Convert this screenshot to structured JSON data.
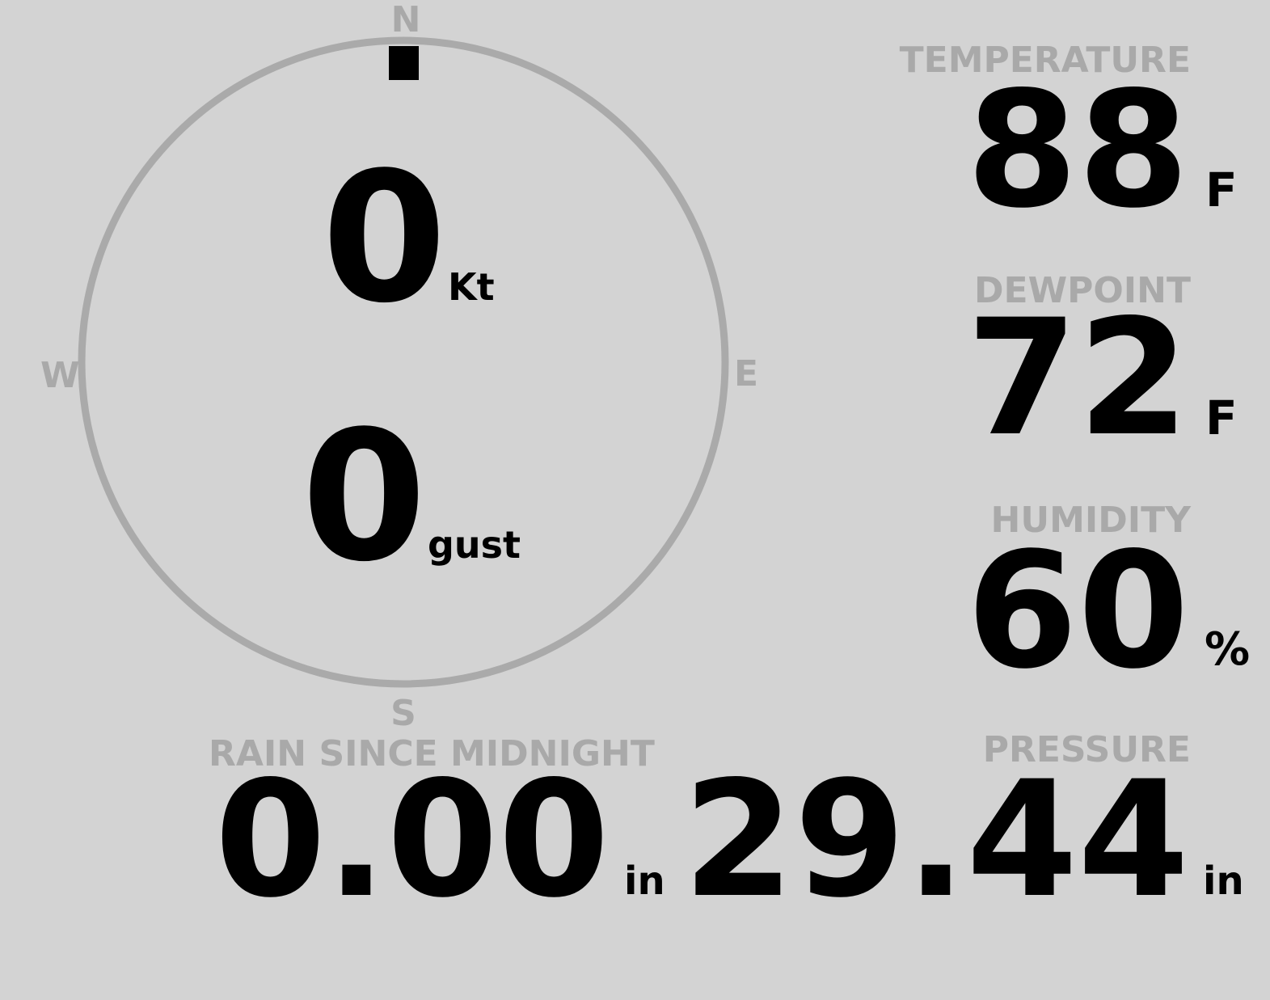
{
  "colors": {
    "background": "#d3d3d3",
    "label": "#a9a9a9",
    "value": "#000000",
    "dial": "#aaaaaa"
  },
  "wind": {
    "compass": {
      "n": "N",
      "e": "E",
      "s": "S",
      "w": "W"
    },
    "direction_deg": 0,
    "speed": "0",
    "speed_unit": "Kt",
    "gust": "0",
    "gust_unit": "gust"
  },
  "temperature": {
    "label": "TEMPERATURE",
    "value": "88",
    "unit": "F"
  },
  "dewpoint": {
    "label": "DEWPOINT",
    "value": "72",
    "unit": "F"
  },
  "humidity": {
    "label": "HUMIDITY",
    "value": "60",
    "unit": "%"
  },
  "pressure": {
    "label": "PRESSURE",
    "value": "29.44",
    "unit": "in"
  },
  "rain": {
    "label": "RAIN SINCE MIDNIGHT",
    "value": "0.00",
    "unit": "in"
  }
}
